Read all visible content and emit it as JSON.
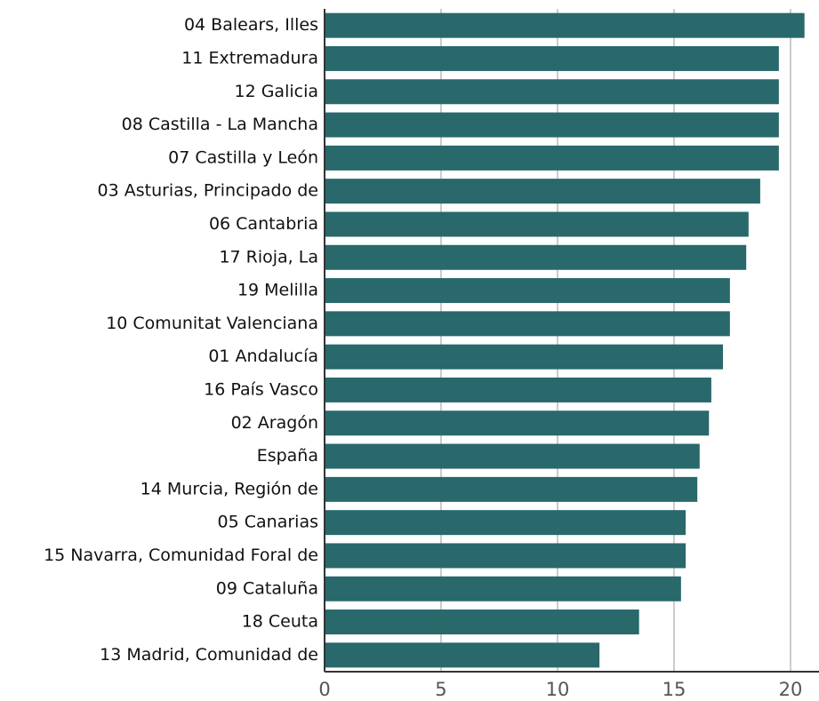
{
  "chart_data": {
    "type": "barh",
    "categories": [
      "04 Balears, Illes",
      "11 Extremadura",
      "12 Galicia",
      "08 Castilla - La Mancha",
      "07 Castilla y León",
      "03 Asturias, Principado de",
      "06 Cantabria",
      "17 Rioja, La",
      "19 Melilla",
      "10 Comunitat Valenciana",
      "01 Andalucía",
      "16 País Vasco",
      "02 Aragón",
      "España",
      "14 Murcia, Región de",
      "05 Canarias",
      "15 Navarra, Comunidad Foral de",
      "09 Cataluña",
      "18 Ceuta",
      "13 Madrid, Comunidad de"
    ],
    "values": [
      20.6,
      19.5,
      19.5,
      19.5,
      19.5,
      18.7,
      18.2,
      18.1,
      17.4,
      17.4,
      17.1,
      16.6,
      16.5,
      16.1,
      16.0,
      15.5,
      15.5,
      15.3,
      13.5,
      11.8
    ],
    "color": "#29686b",
    "xlim": [
      0,
      21.2
    ],
    "xticks": [
      0,
      5,
      10,
      15,
      20
    ],
    "grid": true
  }
}
